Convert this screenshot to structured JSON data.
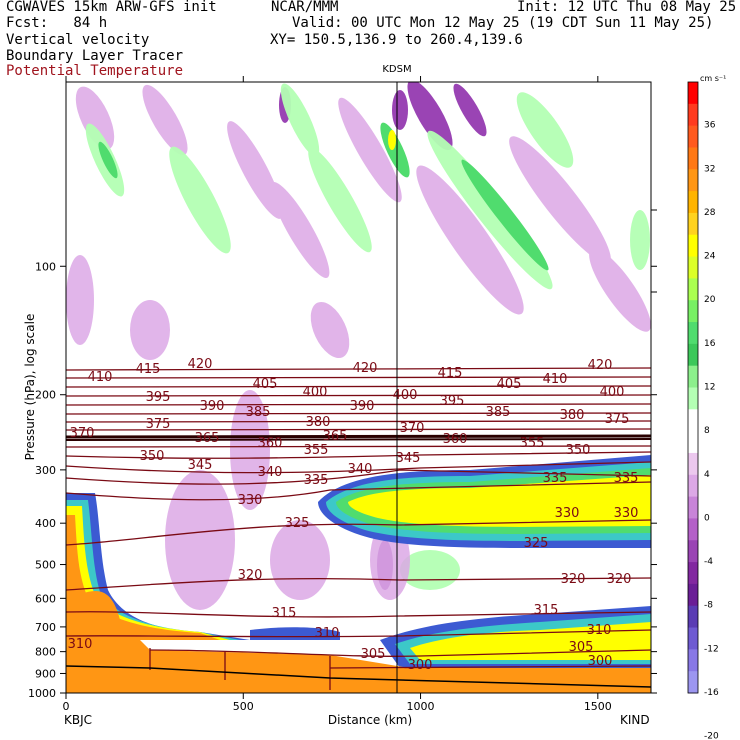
{
  "header": {
    "line1_left": "CGWAVES 15km ARW-GFS init",
    "line1_mid": "NCAR/MMM",
    "line1_right": "Init: 12 UTC Thu 08 May 25",
    "line2_left": "Fcst:   84 h",
    "line2_right": "Valid: 00 UTC Mon 12 May 25 (19 CDT Sun 11 May 25)",
    "line3_left": "Vertical velocity",
    "line3_right": "XY= 150.5,136.9 to 260.4,139.6",
    "line4_left": "Boundary Layer Tracer",
    "line5_left": "Potential Temperature"
  },
  "chart_data": {
    "type": "cross-section",
    "station_marker": {
      "label": "KDSM",
      "x_km": 940
    },
    "xlabel": "Distance (km)",
    "ylabel": "Pressure (hPa), log scale",
    "xlim": [
      0,
      1650
    ],
    "x_ticks": [
      "0",
      "500",
      "1000",
      "1500"
    ],
    "x_end_labels": {
      "left": "KBJC",
      "right": "KIND"
    },
    "y_scale": "log",
    "ylim": [
      1000,
      37
    ],
    "y_ticks": [
      "100",
      "200",
      "300",
      "400",
      "500",
      "600",
      "700",
      "800",
      "900",
      "1000"
    ],
    "colorbar": {
      "unit": "cm s⁻¹",
      "labels": [
        "36",
        "32",
        "28",
        "24",
        "20",
        "16",
        "12",
        "8",
        "4",
        "0",
        "-4",
        "-8",
        "-12",
        "-16",
        "-20"
      ],
      "colors": [
        "#ff0000",
        "#ff3b1e",
        "#ff5a1e",
        "#ff7814",
        "#ff9614",
        "#ffb400",
        "#ffd21e",
        "#ffff00",
        "#dcff28",
        "#aaff50",
        "#78f064",
        "#50dc6e",
        "#3cc85a",
        "#8cf08c",
        "#b4ffb4",
        "#ffffff",
        "#ffffff",
        "#ecc8ee",
        "#dca8e6",
        "#c884d8",
        "#b460c8",
        "#9a44b4",
        "#8228a0",
        "#6a1e96",
        "#5a3cb4",
        "#6e5ad2",
        "#8878e6",
        "#9c96f0"
      ]
    },
    "potential_temperature_labels": [
      "410",
      "415",
      "420",
      "405",
      "400",
      "395",
      "390",
      "385",
      "380",
      "375",
      "370",
      "365",
      "360",
      "355",
      "350",
      "345",
      "340",
      "335",
      "330",
      "325",
      "320",
      "315",
      "310",
      "305",
      "300"
    ]
  }
}
